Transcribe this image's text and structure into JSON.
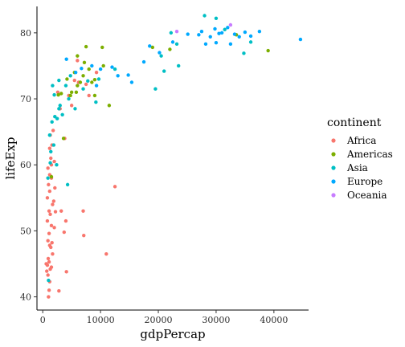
{
  "chart_data": {
    "type": "scatter",
    "title": "",
    "xlabel": "gdpPercap",
    "ylabel": "lifeExp",
    "xlim": [
      -1000,
      46000
    ],
    "ylim": [
      38,
      84
    ],
    "xticks": [
      0,
      10000,
      20000,
      30000,
      40000
    ],
    "yticks": [
      40,
      50,
      60,
      70,
      80
    ],
    "grid": false,
    "legend": {
      "title": "continent",
      "position": "right"
    },
    "series": [
      {
        "name": "Africa",
        "color": "#F8766D",
        "points": [
          [
            800,
            44.8
          ],
          [
            1000,
            40.0
          ],
          [
            1100,
            41.0
          ],
          [
            1200,
            42.3
          ],
          [
            900,
            43.3
          ],
          [
            700,
            43.9
          ],
          [
            1300,
            44.2
          ],
          [
            1500,
            44.5
          ],
          [
            600,
            45.0
          ],
          [
            1100,
            45.3
          ],
          [
            950,
            45.8
          ],
          [
            1700,
            46.5
          ],
          [
            1400,
            47.5
          ],
          [
            1200,
            47.8
          ],
          [
            1600,
            48.2
          ],
          [
            900,
            48.5
          ],
          [
            1100,
            49.6
          ],
          [
            2000,
            50.5
          ],
          [
            1500,
            50.8
          ],
          [
            800,
            51.5
          ],
          [
            1300,
            52.5
          ],
          [
            2200,
            52.9
          ],
          [
            1100,
            53.0
          ],
          [
            1700,
            54.0
          ],
          [
            1900,
            54.5
          ],
          [
            800,
            55.0
          ],
          [
            1200,
            56.0
          ],
          [
            2100,
            56.5
          ],
          [
            1000,
            57.0
          ],
          [
            1500,
            58.0
          ],
          [
            1200,
            58.5
          ],
          [
            900,
            59.5
          ],
          [
            1400,
            61.0
          ],
          [
            1200,
            62.5
          ],
          [
            1600,
            63.0
          ],
          [
            2800,
            40.9
          ],
          [
            3200,
            53.0
          ],
          [
            4000,
            51.5
          ],
          [
            3700,
            49.8
          ],
          [
            4100,
            43.8
          ],
          [
            7000,
            53.0
          ],
          [
            7100,
            49.3
          ],
          [
            11000,
            46.5
          ],
          [
            12500,
            56.7
          ],
          [
            5000,
            69.0
          ],
          [
            5500,
            72.8
          ],
          [
            6200,
            72.5
          ],
          [
            7500,
            72.2
          ],
          [
            8000,
            70.5
          ],
          [
            9300,
            74.0
          ],
          [
            3000,
            68.5
          ],
          [
            2600,
            71.0
          ],
          [
            4500,
            70.5
          ],
          [
            6000,
            75.8
          ],
          [
            3800,
            64.0
          ],
          [
            1500,
            60.0
          ],
          [
            2000,
            60.5
          ],
          [
            1300,
            64.5
          ],
          [
            1800,
            65.2
          ]
        ]
      },
      {
        "name": "Americas",
        "color": "#7CAE00",
        "points": [
          [
            1500,
            58.2
          ],
          [
            3600,
            64.0
          ],
          [
            2700,
            70.6
          ],
          [
            3200,
            70.8
          ],
          [
            5000,
            71.0
          ],
          [
            5800,
            71.0
          ],
          [
            6000,
            72.0
          ],
          [
            7000,
            73.5
          ],
          [
            7200,
            75.5
          ],
          [
            8500,
            72.5
          ],
          [
            9000,
            72.9
          ],
          [
            6000,
            76.5
          ],
          [
            7500,
            77.9
          ],
          [
            10300,
            77.8
          ],
          [
            11500,
            69.0
          ],
          [
            10500,
            75.0
          ],
          [
            19000,
            77.8
          ],
          [
            22000,
            77.5
          ],
          [
            33500,
            79.7
          ],
          [
            39000,
            77.3
          ],
          [
            4200,
            73.0
          ],
          [
            5500,
            74.0
          ],
          [
            9000,
            70.5
          ],
          [
            8000,
            74.5
          ],
          [
            6500,
            72.5
          ],
          [
            4800,
            70.5
          ]
        ]
      },
      {
        "name": "Asia",
        "color": "#00BFC4",
        "points": [
          [
            1000,
            42.5
          ],
          [
            900,
            58.0
          ],
          [
            1400,
            62.0
          ],
          [
            1600,
            66.5
          ],
          [
            1900,
            63.0
          ],
          [
            2500,
            67.0
          ],
          [
            2800,
            68.5
          ],
          [
            3000,
            69.0
          ],
          [
            1700,
            72.0
          ],
          [
            2800,
            72.8
          ],
          [
            4000,
            72.0
          ],
          [
            4500,
            70.0
          ],
          [
            4300,
            57.0
          ],
          [
            5600,
            68.5
          ],
          [
            7000,
            71.5
          ],
          [
            7800,
            72.7
          ],
          [
            9700,
            73.0
          ],
          [
            12500,
            74.5
          ],
          [
            19500,
            71.5
          ],
          [
            21000,
            74.2
          ],
          [
            20500,
            76.5
          ],
          [
            23500,
            75.0
          ],
          [
            23200,
            78.3
          ],
          [
            22200,
            80.0
          ],
          [
            28000,
            82.6
          ],
          [
            30000,
            82.2
          ],
          [
            31500,
            80.5
          ],
          [
            36000,
            78.6
          ],
          [
            34800,
            76.9
          ],
          [
            1300,
            60.3
          ],
          [
            2100,
            67.3
          ],
          [
            3400,
            67.6
          ],
          [
            2000,
            70.6
          ],
          [
            2400,
            60.0
          ],
          [
            1200,
            64.5
          ],
          [
            4800,
            73.5
          ],
          [
            9200,
            69.5
          ]
        ]
      },
      {
        "name": "Europe",
        "color": "#00A9FF",
        "points": [
          [
            4100,
            76.0
          ],
          [
            5700,
            74.0
          ],
          [
            6700,
            74.6
          ],
          [
            8500,
            75.0
          ],
          [
            9300,
            72.0
          ],
          [
            10000,
            74.5
          ],
          [
            12000,
            74.8
          ],
          [
            13000,
            73.5
          ],
          [
            14800,
            73.6
          ],
          [
            15400,
            72.5
          ],
          [
            17500,
            75.6
          ],
          [
            18500,
            78.0
          ],
          [
            20200,
            77.0
          ],
          [
            22500,
            78.6
          ],
          [
            25100,
            79.8
          ],
          [
            27500,
            80.2
          ],
          [
            28200,
            78.3
          ],
          [
            29000,
            79.4
          ],
          [
            29800,
            80.6
          ],
          [
            30500,
            79.9
          ],
          [
            32000,
            80.8
          ],
          [
            32500,
            78.3
          ],
          [
            33200,
            79.8
          ],
          [
            34000,
            79.4
          ],
          [
            35000,
            80.1
          ],
          [
            36000,
            79.5
          ],
          [
            37500,
            80.2
          ],
          [
            44600,
            79.0
          ],
          [
            30000,
            78.5
          ],
          [
            31000,
            80.0
          ],
          [
            27000,
            79.7
          ]
        ]
      },
      {
        "name": "Oceania",
        "color": "#C77CFF",
        "points": [
          [
            23200,
            80.2
          ],
          [
            32500,
            81.2
          ]
        ]
      }
    ]
  }
}
